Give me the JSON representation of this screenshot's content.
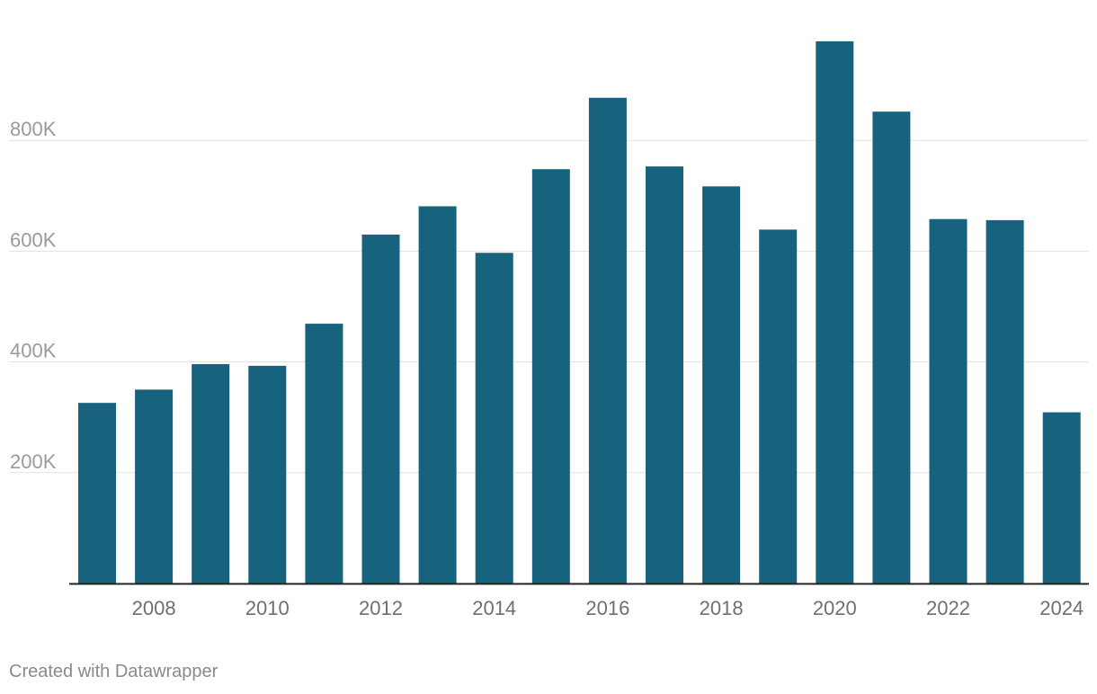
{
  "chart_data": {
    "type": "bar",
    "title": "",
    "xlabel": "",
    "ylabel": "",
    "categories": [
      "2007",
      "2008",
      "2009",
      "2010",
      "2011",
      "2012",
      "2013",
      "2014",
      "2015",
      "2016",
      "2017",
      "2018",
      "2019",
      "2020",
      "2021",
      "2022",
      "2023",
      "2024"
    ],
    "values": [
      326000,
      350000,
      396000,
      393000,
      469000,
      630000,
      681000,
      597000,
      748000,
      877000,
      753000,
      717000,
      639000,
      979000,
      852000,
      658000,
      656000,
      309000
    ],
    "ylim": [
      0,
      1000000
    ],
    "y_ticks": [
      {
        "value": 200000,
        "label": "200K"
      },
      {
        "value": 400000,
        "label": "400K"
      },
      {
        "value": 600000,
        "label": "600K"
      },
      {
        "value": 800000,
        "label": "800K"
      }
    ],
    "x_tick_labels": [
      "2008",
      "2010",
      "2012",
      "2014",
      "2016",
      "2018",
      "2020",
      "2022",
      "2024"
    ],
    "grid": true,
    "bar_color": "#17627d"
  },
  "footer": {
    "credit": "Created with Datawrapper"
  }
}
